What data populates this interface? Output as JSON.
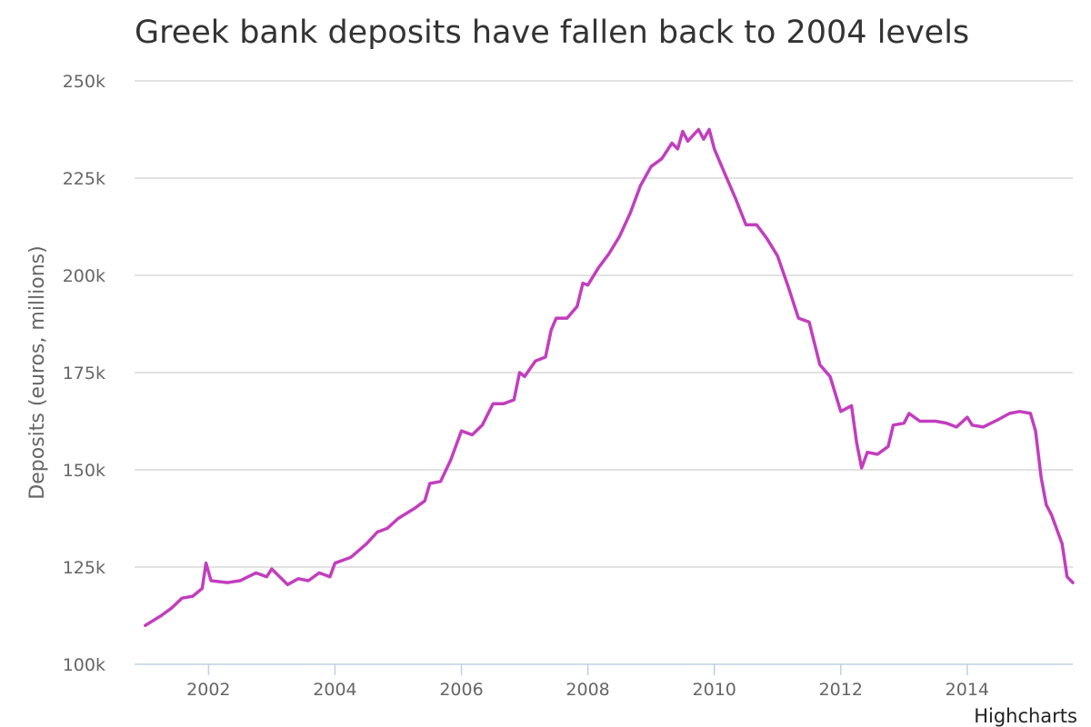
{
  "chart_data": {
    "type": "line",
    "title": "Greek bank deposits have fallen back to 2004 levels",
    "ylabel": "Deposits (euros, millions)",
    "xlabel": "",
    "ylim": [
      100000,
      250000
    ],
    "xlim": [
      2000.83,
      2015.67
    ],
    "y_ticks": [
      {
        "value": 100000,
        "label": "100k"
      },
      {
        "value": 125000,
        "label": "125k"
      },
      {
        "value": 150000,
        "label": "150k"
      },
      {
        "value": 175000,
        "label": "175k"
      },
      {
        "value": 200000,
        "label": "200k"
      },
      {
        "value": 225000,
        "label": "225k"
      },
      {
        "value": 250000,
        "label": "250k"
      }
    ],
    "x_ticks": [
      {
        "value": 2002,
        "label": "2002"
      },
      {
        "value": 2004,
        "label": "2004"
      },
      {
        "value": 2006,
        "label": "2006"
      },
      {
        "value": 2008,
        "label": "2008"
      },
      {
        "value": 2010,
        "label": "2010"
      },
      {
        "value": 2012,
        "label": "2012"
      },
      {
        "value": 2014,
        "label": "2014"
      }
    ],
    "grid": true,
    "legend": "none",
    "series": [
      {
        "color": "#c23ebd",
        "points": [
          [
            2001.0,
            110000
          ],
          [
            2001.25,
            112500
          ],
          [
            2001.42,
            114500
          ],
          [
            2001.58,
            117000
          ],
          [
            2001.75,
            117500
          ],
          [
            2001.9,
            119500
          ],
          [
            2001.96,
            126000
          ],
          [
            2002.04,
            121500
          ],
          [
            2002.3,
            121000
          ],
          [
            2002.5,
            121500
          ],
          [
            2002.75,
            123500
          ],
          [
            2002.92,
            122500
          ],
          [
            2003.0,
            124500
          ],
          [
            2003.25,
            120500
          ],
          [
            2003.42,
            122000
          ],
          [
            2003.58,
            121500
          ],
          [
            2003.75,
            123500
          ],
          [
            2003.92,
            122500
          ],
          [
            2004.0,
            126000
          ],
          [
            2004.25,
            127500
          ],
          [
            2004.5,
            131000
          ],
          [
            2004.67,
            134000
          ],
          [
            2004.83,
            135000
          ],
          [
            2005.0,
            137500
          ],
          [
            2005.25,
            140000
          ],
          [
            2005.42,
            142000
          ],
          [
            2005.5,
            146500
          ],
          [
            2005.67,
            147000
          ],
          [
            2005.83,
            152500
          ],
          [
            2006.0,
            160000
          ],
          [
            2006.17,
            159000
          ],
          [
            2006.33,
            161500
          ],
          [
            2006.5,
            167000
          ],
          [
            2006.67,
            167000
          ],
          [
            2006.83,
            168000
          ],
          [
            2006.92,
            175000
          ],
          [
            2007.0,
            174000
          ],
          [
            2007.17,
            178000
          ],
          [
            2007.33,
            179000
          ],
          [
            2007.42,
            186000
          ],
          [
            2007.5,
            189000
          ],
          [
            2007.67,
            189000
          ],
          [
            2007.83,
            192000
          ],
          [
            2007.92,
            198000
          ],
          [
            2008.0,
            197500
          ],
          [
            2008.17,
            202000
          ],
          [
            2008.33,
            205500
          ],
          [
            2008.5,
            210000
          ],
          [
            2008.67,
            216000
          ],
          [
            2008.83,
            223000
          ],
          [
            2009.0,
            228000
          ],
          [
            2009.17,
            230000
          ],
          [
            2009.33,
            234000
          ],
          [
            2009.42,
            232500
          ],
          [
            2009.5,
            237000
          ],
          [
            2009.58,
            234500
          ],
          [
            2009.75,
            237500
          ],
          [
            2009.83,
            235000
          ],
          [
            2009.92,
            237500
          ],
          [
            2010.0,
            232500
          ],
          [
            2010.17,
            226000
          ],
          [
            2010.33,
            220000
          ],
          [
            2010.5,
            213000
          ],
          [
            2010.67,
            213000
          ],
          [
            2010.83,
            209500
          ],
          [
            2011.0,
            205000
          ],
          [
            2011.17,
            197000
          ],
          [
            2011.33,
            189000
          ],
          [
            2011.5,
            188000
          ],
          [
            2011.67,
            177000
          ],
          [
            2011.83,
            174000
          ],
          [
            2012.0,
            165000
          ],
          [
            2012.17,
            166500
          ],
          [
            2012.25,
            157000
          ],
          [
            2012.33,
            150500
          ],
          [
            2012.42,
            154500
          ],
          [
            2012.58,
            154000
          ],
          [
            2012.75,
            156000
          ],
          [
            2012.83,
            161500
          ],
          [
            2013.0,
            162000
          ],
          [
            2013.08,
            164500
          ],
          [
            2013.25,
            162500
          ],
          [
            2013.5,
            162500
          ],
          [
            2013.67,
            162000
          ],
          [
            2013.83,
            161000
          ],
          [
            2014.0,
            163500
          ],
          [
            2014.08,
            161500
          ],
          [
            2014.25,
            161000
          ],
          [
            2014.5,
            163000
          ],
          [
            2014.67,
            164500
          ],
          [
            2014.83,
            165000
          ],
          [
            2015.0,
            164500
          ],
          [
            2015.08,
            160000
          ],
          [
            2015.17,
            148000
          ],
          [
            2015.25,
            141000
          ],
          [
            2015.33,
            138500
          ],
          [
            2015.5,
            131000
          ],
          [
            2015.58,
            122500
          ],
          [
            2015.67,
            121000
          ]
        ]
      }
    ]
  },
  "credits": "Highcharts"
}
